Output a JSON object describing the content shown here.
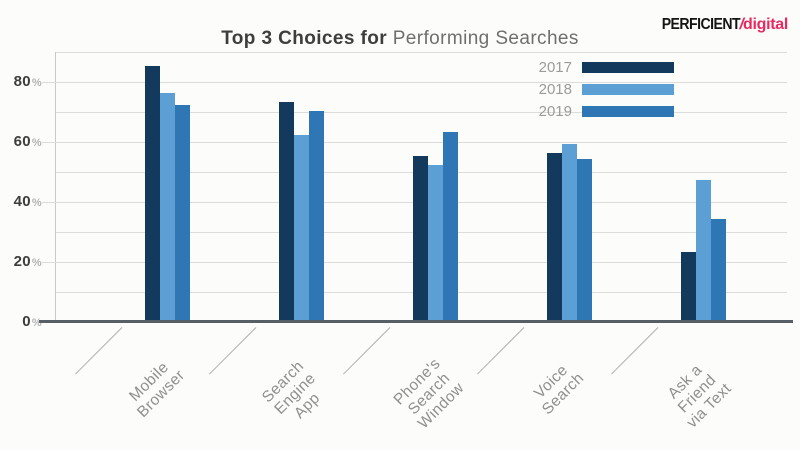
{
  "logo": {
    "brand": "PERFICIENT",
    "slash": "/",
    "sub": "digital",
    "brand_color": "#141414",
    "accent_color": "#e72a62"
  },
  "title": {
    "bold": "Top 3 Choices for",
    "regular": " Performing Searches"
  },
  "chart_data": {
    "type": "bar",
    "title": "Top 3 Choices for Performing Searches",
    "categories": [
      "Mobile Browser",
      "Search Engine App",
      "Phone's Search Window",
      "Voice Search",
      "Ask a Friend via Text"
    ],
    "category_lines": [
      [
        "Mobile",
        "Browser"
      ],
      [
        "Search",
        "Engine",
        "App"
      ],
      [
        "Phone's",
        "Search",
        "Window"
      ],
      [
        "Voice",
        "Search"
      ],
      [
        "Ask a",
        "Friend",
        "via Text"
      ]
    ],
    "series": [
      {
        "name": "2017",
        "color": "#133a5d",
        "values": [
          85,
          73,
          55,
          56,
          23
        ]
      },
      {
        "name": "2018",
        "color": "#5b9fd4",
        "values": [
          76,
          62,
          52,
          59,
          47
        ]
      },
      {
        "name": "2019",
        "color": "#2e76b4",
        "values": [
          72,
          70,
          63,
          54,
          34
        ]
      }
    ],
    "unit": "%",
    "ylim": [
      0,
      90
    ],
    "ytick_labels": [
      80,
      60,
      40,
      20,
      0
    ],
    "gridline_step": 10,
    "grid": true,
    "legend_position": "top-right",
    "xlabel": "",
    "ylabel": "",
    "colors": {
      "gridline": "#dcdcdc",
      "axis": "#575f66"
    }
  }
}
